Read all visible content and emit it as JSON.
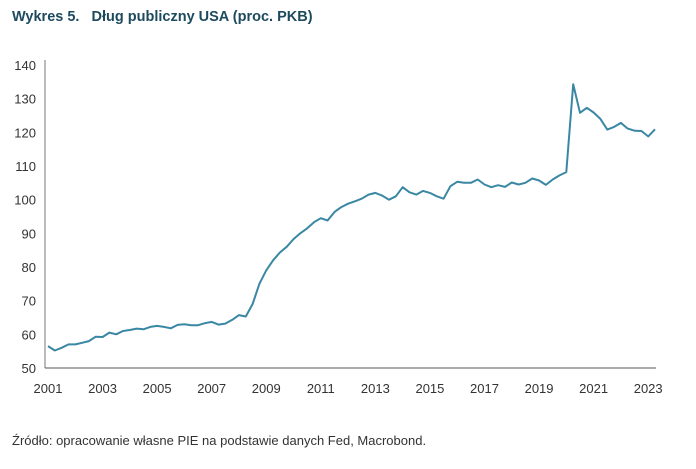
{
  "chart_data": {
    "type": "line",
    "title": "Wykres 5.   Dług publiczny USA (proc. PKB)",
    "xlabel": "",
    "ylabel": "",
    "ylim": [
      50,
      140
    ],
    "xlim": [
      2001,
      2023.25
    ],
    "yticks": [
      "50",
      "60",
      "70",
      "80",
      "90",
      "100",
      "110",
      "120",
      "130",
      "140"
    ],
    "xticks": [
      "2001",
      "2003",
      "2005",
      "2007",
      "2009",
      "2011",
      "2013",
      "2015",
      "2017",
      "2019",
      "2021",
      "2023"
    ],
    "grid": false,
    "line_color": "#3a87a4",
    "frequency": "quarterly",
    "start": 2001,
    "series": [
      {
        "name": "Dług publiczny USA (proc. PKB)",
        "values": [
          56.5,
          55.2,
          56,
          57,
          57,
          57.5,
          58,
          59.3,
          59.2,
          60.5,
          60,
          61,
          61.3,
          61.7,
          61.5,
          62.2,
          62.5,
          62.2,
          61.8,
          62.8,
          63,
          62.7,
          62.7,
          63.3,
          63.7,
          62.9,
          63.2,
          64.3,
          65.7,
          65.3,
          69,
          75,
          79,
          82,
          84.3,
          86,
          88.3,
          90,
          91.5,
          93.3,
          94.5,
          93.8,
          96.3,
          97.8,
          98.8,
          99.5,
          100.3,
          101.5,
          102,
          101.2,
          100,
          101,
          103.7,
          102.2,
          101.5,
          102.6,
          102,
          101,
          100.3,
          104,
          105.3,
          105,
          105,
          106,
          104.5,
          103.7,
          104.3,
          103.8,
          105.1,
          104.5,
          105,
          106.3,
          105.7,
          104.4,
          106,
          107.2,
          108.2,
          134.3,
          125.8,
          127.3,
          125.9,
          124,
          120.8,
          121.6,
          122.8,
          121.1,
          120.5,
          120.4,
          118.8,
          120.9
        ]
      }
    ]
  },
  "source": "Źródło: opracowanie własne PIE na podstawie danych Fed, Macrobond."
}
